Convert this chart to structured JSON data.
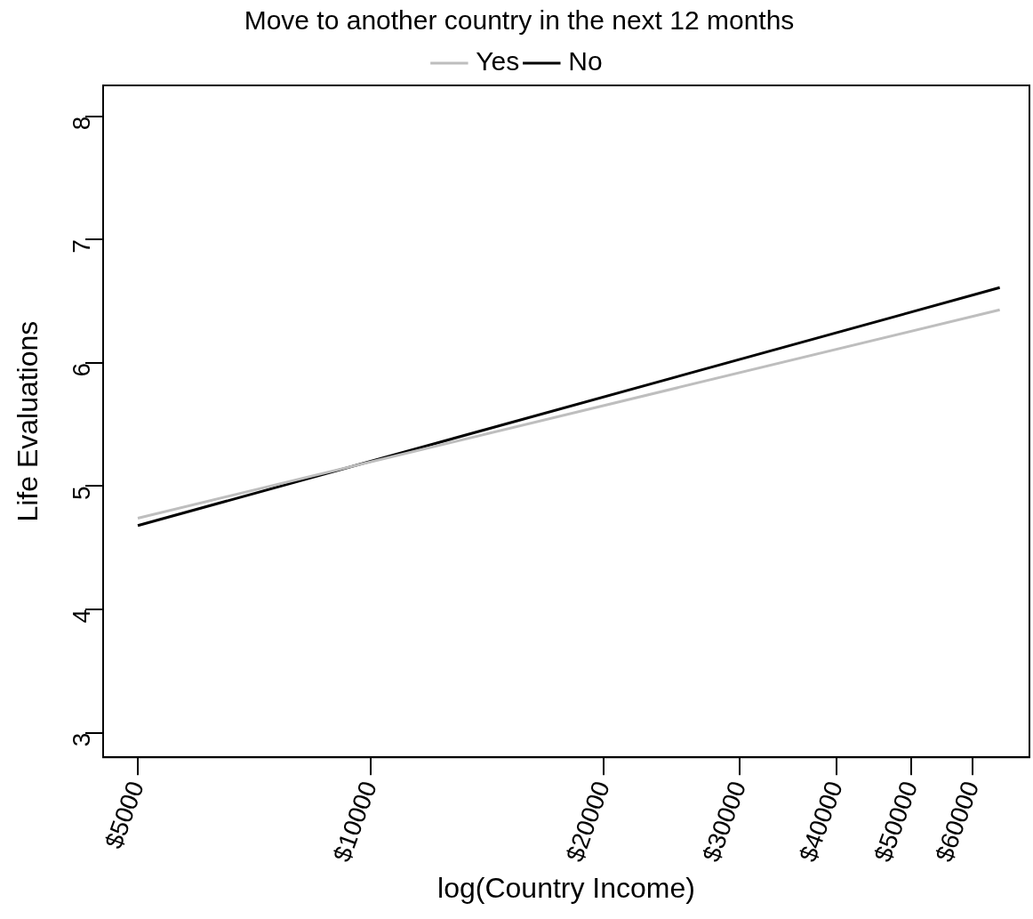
{
  "chart_data": {
    "type": "line",
    "xlabel": "log(Country Income)",
    "ylabel": "Life Evaluations",
    "legend_title": "Move to another country in the next 12 months",
    "log": "x",
    "legend": "top",
    "grid": false,
    "x": [
      5000,
      65000
    ],
    "series": [
      {
        "name": "Yes",
        "color": "#bebebe",
        "values": [
          4.74,
          6.43
        ]
      },
      {
        "name": "No",
        "color": "#000000",
        "values": [
          4.68,
          6.61
        ]
      }
    ],
    "xlim": [
      4510,
      71000
    ],
    "xticks": [
      {
        "value": 5000,
        "label": "$5000"
      },
      {
        "value": 10000,
        "label": "$10000"
      },
      {
        "value": 20000,
        "label": "$20000"
      },
      {
        "value": 30000,
        "label": "$30000"
      },
      {
        "value": 40000,
        "label": "$40000"
      },
      {
        "value": 50000,
        "label": "$50000"
      },
      {
        "value": 60000,
        "label": "$60000"
      }
    ],
    "ylim": [
      2.8,
      8.25
    ],
    "yticks": [
      3,
      4,
      5,
      6,
      7,
      8
    ]
  }
}
